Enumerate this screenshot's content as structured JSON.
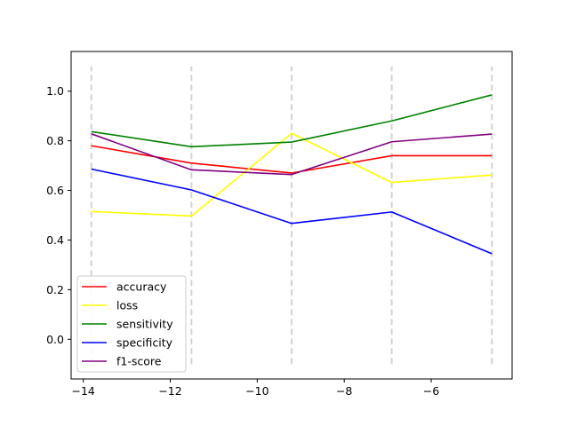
{
  "chart_data": {
    "type": "line",
    "x": [
      -13.8155,
      -11.5129,
      -9.2103,
      -6.9078,
      -4.6052
    ],
    "series": [
      {
        "name": "accuracy",
        "color": "#ff0000",
        "values": [
          0.78,
          0.71,
          0.67,
          0.74,
          0.74
        ]
      },
      {
        "name": "loss",
        "color": "#ffff00",
        "values": [
          0.515,
          0.497,
          0.83,
          0.632,
          0.662
        ]
      },
      {
        "name": "sensitivity",
        "color": "#008000",
        "values": [
          0.837,
          0.776,
          0.795,
          0.88,
          0.985
        ]
      },
      {
        "name": "specificity",
        "color": "#0000ff",
        "values": [
          0.686,
          0.602,
          0.467,
          0.513,
          0.345
        ]
      },
      {
        "name": "f1-score",
        "color": "#800080",
        "values": [
          0.828,
          0.683,
          0.664,
          0.796,
          0.827
        ]
      }
    ],
    "vlines": {
      "x": [
        -13.8155,
        -11.5129,
        -9.2103,
        -6.9078,
        -4.6052
      ],
      "ymin": -0.1,
      "ymax": 1.1,
      "color": "#d3d3d3",
      "style": "dashed"
    },
    "xlim": [
      -14.28,
      -4.14
    ],
    "ylim": [
      -0.16,
      1.16
    ],
    "xticks": [
      -14,
      -12,
      -10,
      -8,
      -6
    ],
    "xtick_labels": [
      "−14",
      "−12",
      "−10",
      "−8",
      "−6"
    ],
    "yticks": [
      0.0,
      0.2,
      0.4,
      0.6,
      0.8,
      1.0
    ],
    "ytick_labels": [
      "0.0",
      "0.2",
      "0.4",
      "0.6",
      "0.8",
      "1.0"
    ],
    "title": "",
    "xlabel": "",
    "ylabel": "",
    "grid": false,
    "legend_position": "lower-left"
  }
}
